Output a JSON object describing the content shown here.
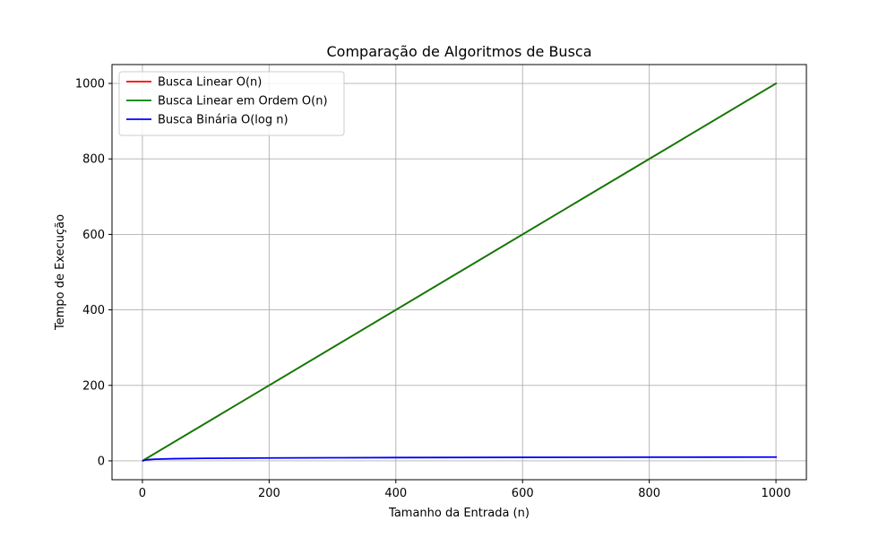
{
  "chart_data": {
    "type": "line",
    "title": "Comparação de Algoritmos de Busca",
    "xlabel": "Tamanho da Entrada (n)",
    "ylabel": "Tempo de Execução",
    "xlim": [
      -48,
      1048
    ],
    "ylim": [
      -50,
      1050
    ],
    "xticks": [
      0,
      200,
      400,
      600,
      800,
      1000
    ],
    "yticks": [
      0,
      200,
      400,
      600,
      800,
      1000
    ],
    "grid": true,
    "legend_position": "top-left",
    "series": [
      {
        "name": "Busca Linear O(n)",
        "color": "#ff0000",
        "x": [
          1,
          1000
        ],
        "y": [
          1,
          1000
        ]
      },
      {
        "name": "Busca Linear em Ordem O(n)",
        "color": "#008000",
        "x": [
          1,
          1000
        ],
        "y": [
          1,
          1000
        ]
      },
      {
        "name": "Busca Binária O(log n)",
        "color": "#0000ff",
        "x": [
          1,
          2,
          3,
          5,
          10,
          20,
          50,
          100,
          200,
          300,
          400,
          500,
          600,
          700,
          800,
          900,
          1000
        ],
        "y": [
          0,
          1,
          1.58,
          2.32,
          3.32,
          4.32,
          5.64,
          6.64,
          7.64,
          8.23,
          8.64,
          8.97,
          9.23,
          9.45,
          9.64,
          9.81,
          9.97
        ]
      }
    ]
  }
}
